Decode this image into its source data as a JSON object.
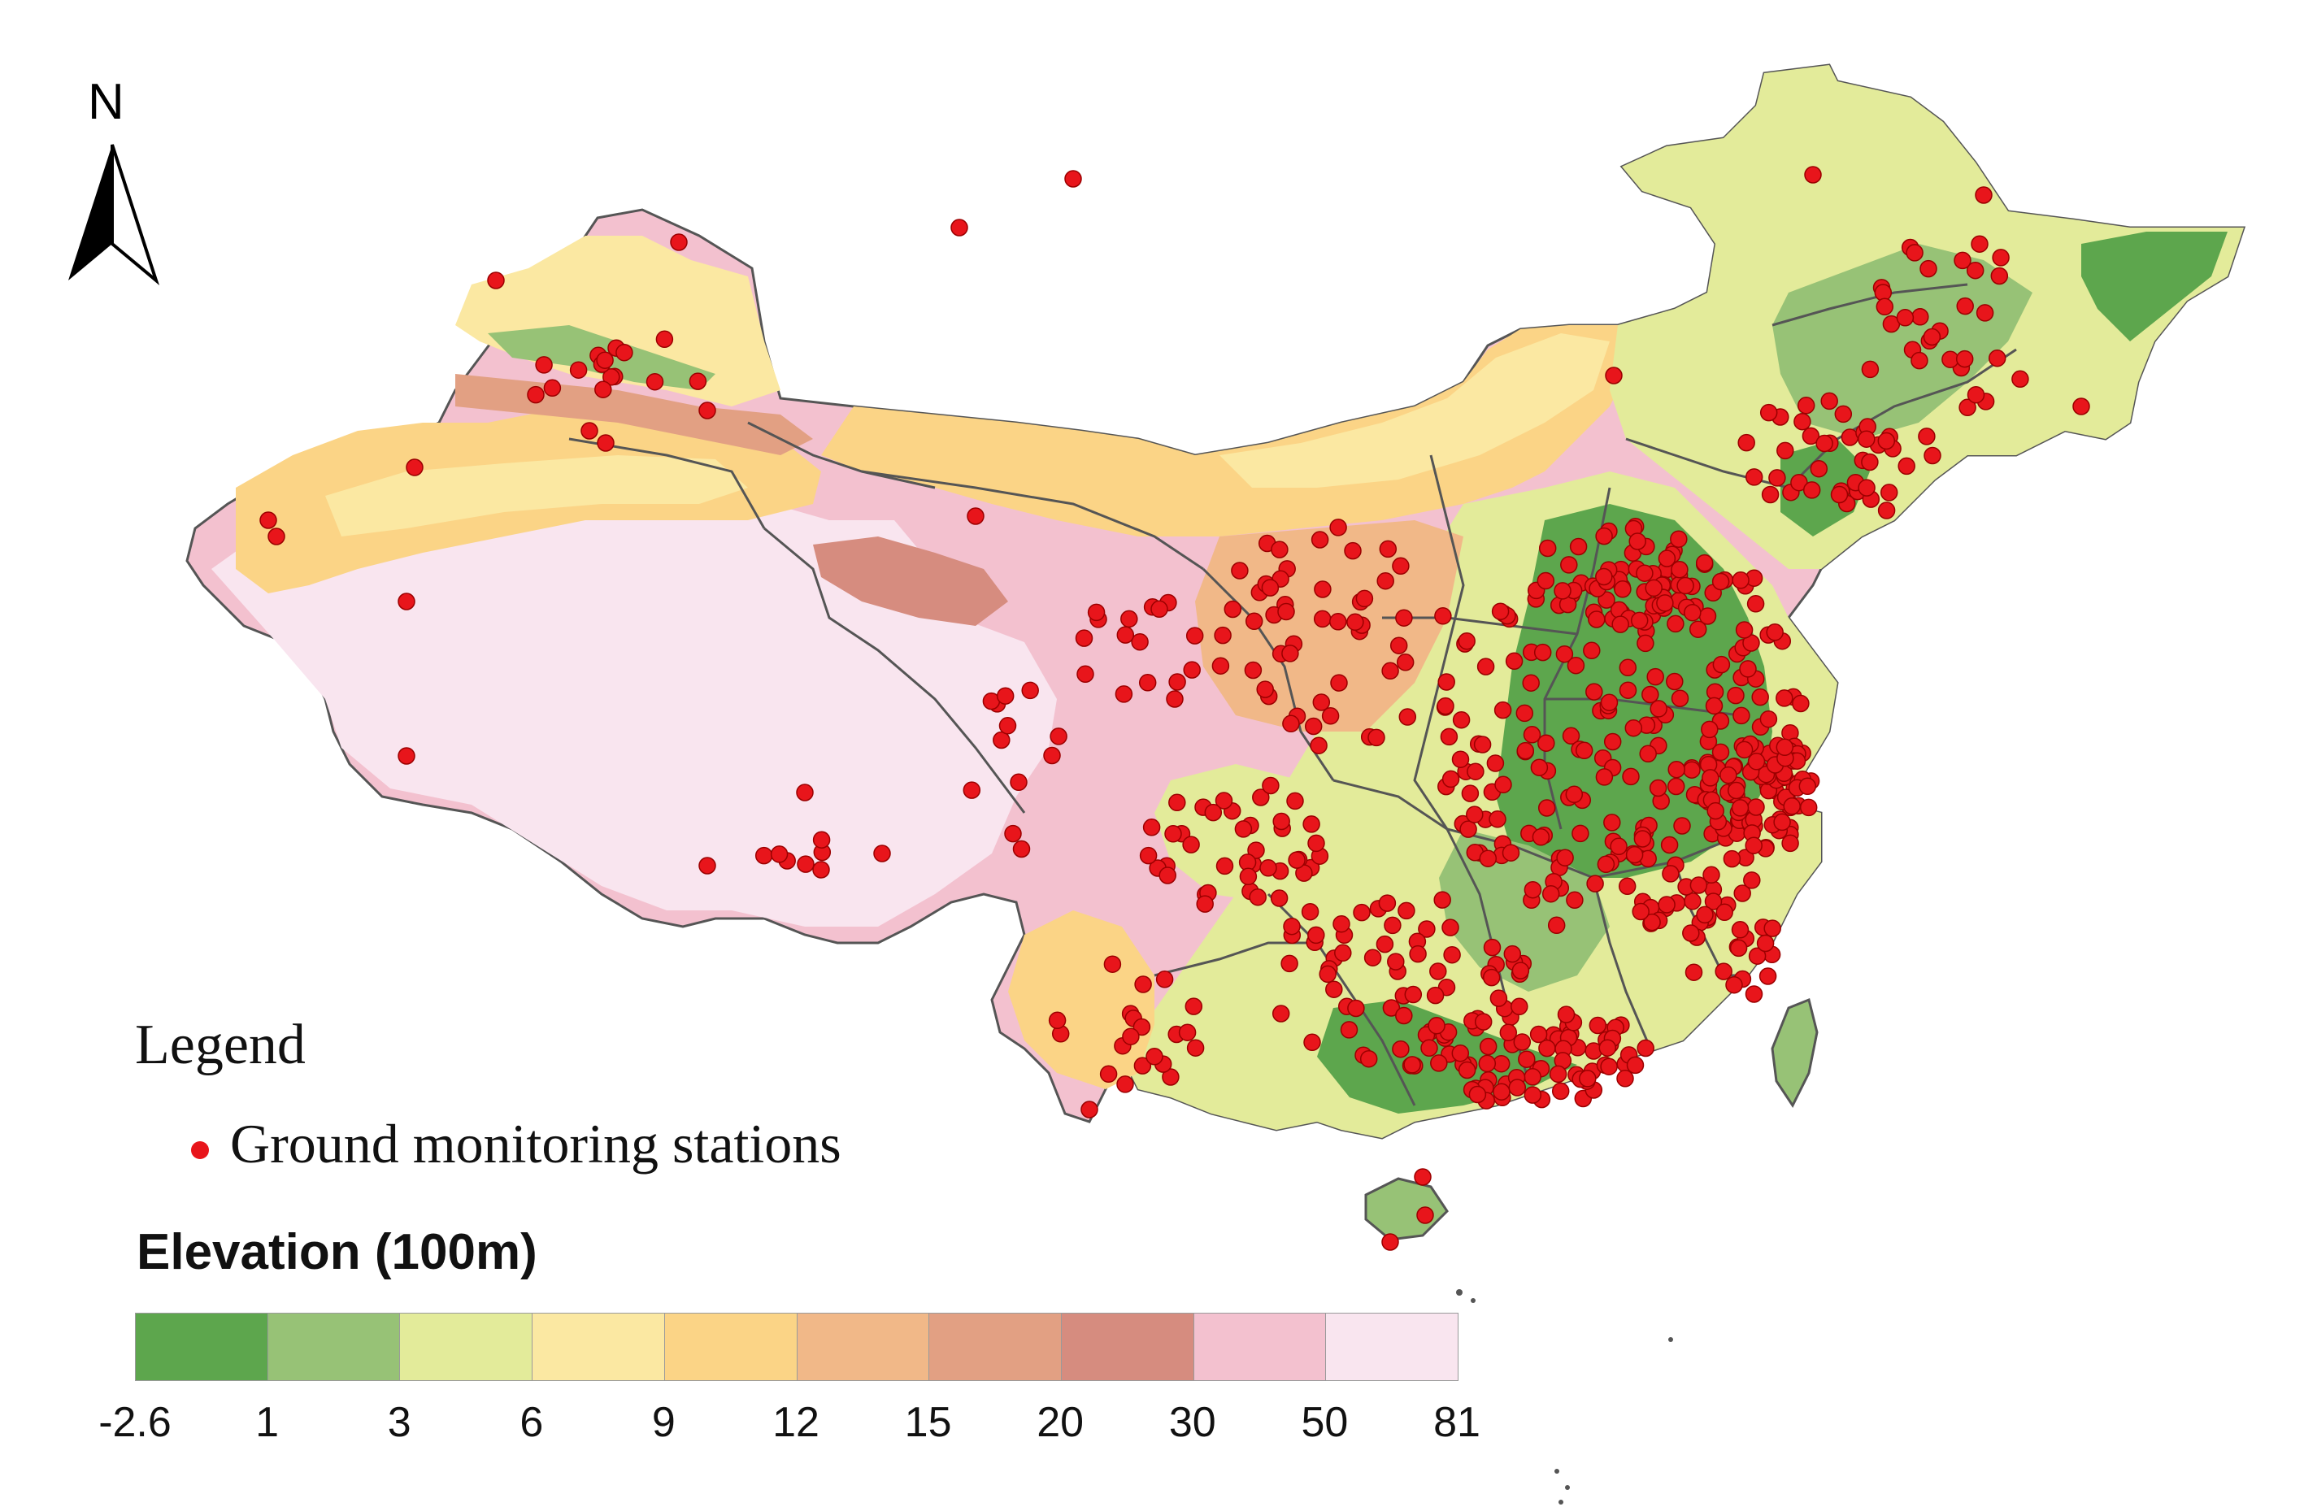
{
  "north_arrow": {
    "letter": "N"
  },
  "legend": {
    "title": "Legend",
    "item_label": "Ground monitoring stations",
    "station_color": "#e8151b"
  },
  "elevation_scale": {
    "title": "Elevation (100m)",
    "ticks": [
      "-2.6",
      "1",
      "3",
      "6",
      "9",
      "12",
      "15",
      "20",
      "30",
      "50",
      "81"
    ],
    "colors": [
      "#5da64d",
      "#97c276",
      "#e3eb9a",
      "#fbe8a2",
      "#fbd486",
      "#f1b888",
      "#e2a083",
      "#d68c7f",
      "#f3c1cf",
      "#f9e5ef"
    ]
  },
  "map_colors": {
    "outline": "#555555",
    "coast": "#5a5a5a"
  }
}
